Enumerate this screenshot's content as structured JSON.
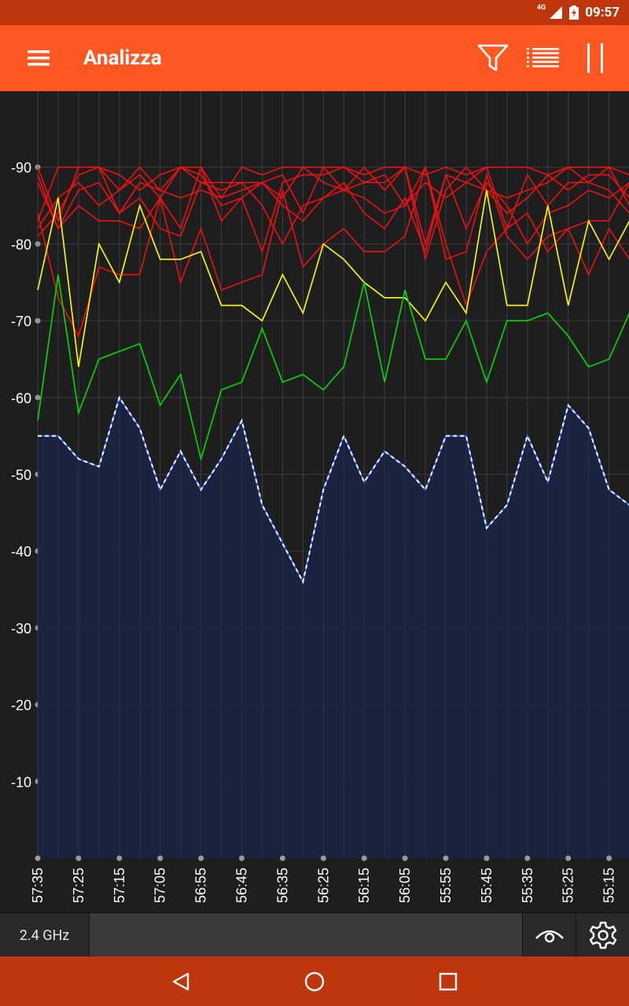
{
  "status_bar": {
    "time": "09:57",
    "network": "4G"
  },
  "app_bar": {
    "title": "Analizza",
    "icons": [
      "menu-icon",
      "filter-icon",
      "list-icon",
      "pause-icon"
    ]
  },
  "colors": {
    "primary": "#ff5722",
    "primary_dark": "#bf360c",
    "chart_background": "#1e1e1e",
    "grid": "#3c3c3c",
    "series": [
      "#ffffff",
      "#00dd00",
      "#ffff00",
      "#ee1111"
    ]
  },
  "bottom_panel": {
    "band": "2.4 GHz",
    "icons": [
      "eye-icon",
      "settings-icon"
    ]
  },
  "nav_bar": {
    "icons": [
      "back-icon",
      "home-icon",
      "recents-icon"
    ]
  },
  "chart_data": {
    "type": "line",
    "ylim": [
      -100,
      0
    ],
    "yticks": [
      -10,
      -20,
      -30,
      -40,
      -50,
      -60,
      -70,
      -80,
      -90
    ],
    "x": [
      "57:35",
      "57:30",
      "57:25",
      "57:20",
      "57:15",
      "57:10",
      "57:05",
      "57:00",
      "56:55",
      "56:50",
      "56:45",
      "56:40",
      "56:35",
      "56:30",
      "56:25",
      "56:20",
      "56:15",
      "56:10",
      "56:05",
      "56:00",
      "55:55",
      "55:50",
      "55:45",
      "55:40",
      "55:35",
      "55:30",
      "55:25",
      "55:20",
      "55:15",
      "55:10"
    ],
    "xtick_labels": [
      "57:35",
      "57:25",
      "57:15",
      "57:05",
      "56:55",
      "56:45",
      "56:35",
      "56:25",
      "56:15",
      "56:05",
      "55:55",
      "55:45",
      "55:35",
      "55:25",
      "55:15"
    ],
    "series": [
      {
        "values": [
          -55,
          -55,
          -52,
          -51,
          -60,
          -56,
          -48,
          -53,
          -48,
          -52,
          -57,
          -46,
          -41,
          -36,
          -48,
          -55,
          -49,
          -53,
          -51,
          -48,
          -55,
          -55,
          -43,
          -46,
          -55,
          -49,
          -59,
          -56,
          -48,
          -46
        ]
      },
      {
        "values": [
          -57,
          -76,
          -58,
          -65,
          -66,
          -67,
          -59,
          -63,
          -52,
          -61,
          -62,
          -69,
          -62,
          -63,
          -61,
          -64,
          -75,
          -62,
          -74,
          -65,
          -65,
          -70,
          -62,
          -70,
          -70,
          -71,
          -68,
          -64,
          -65,
          -71
        ]
      },
      {
        "values": [
          -74,
          -86,
          -64,
          -80,
          -75,
          -85,
          -78,
          -78,
          -79,
          -72,
          -72,
          -70,
          -76,
          -71,
          -80,
          -78,
          -75,
          -73,
          -73,
          -70,
          -75,
          -71,
          -87,
          -72,
          -72,
          -85,
          -72,
          -83,
          -78,
          -83
        ]
      },
      {
        "values": [
          -84,
          -73,
          -68,
          -77,
          -76,
          -76,
          -86,
          -75,
          -82,
          -74,
          -75,
          -76,
          -87,
          -77,
          -80,
          -82,
          -79,
          -79,
          -81,
          -90,
          -78,
          -79,
          -89,
          -81,
          -78,
          -81,
          -82,
          -76,
          -82,
          -78
        ]
      },
      {
        "values": [
          -88,
          -82,
          -85,
          -83,
          -83,
          -82,
          -86,
          -82,
          -90,
          -83,
          -86,
          -88,
          -85,
          -83,
          -86,
          -87,
          -86,
          -84,
          -85,
          -90,
          -80,
          -72,
          -79,
          -82,
          -84,
          -79,
          -82,
          -83,
          -83,
          -88
        ]
      },
      {
        "values": [
          -89,
          -82,
          -87,
          -88,
          -84,
          -86,
          -82,
          -81,
          -88,
          -87,
          -88,
          -85,
          -80,
          -85,
          -86,
          -88,
          -84,
          -82,
          -86,
          -79,
          -89,
          -82,
          -88,
          -85,
          -80,
          -84,
          -85,
          -87,
          -86,
          -88
        ]
      },
      {
        "values": [
          -81,
          -84,
          -89,
          -90,
          -84,
          -88,
          -87,
          -86,
          -87,
          -86,
          -87,
          -88,
          -89,
          -84,
          -90,
          -87,
          -90,
          -87,
          -90,
          -80,
          -89,
          -88,
          -90,
          -82,
          -89,
          -85,
          -88,
          -88,
          -90,
          -85
        ]
      },
      {
        "values": [
          -82,
          -86,
          -88,
          -85,
          -87,
          -89,
          -86,
          -90,
          -89,
          -85,
          -86,
          -79,
          -88,
          -89,
          -89,
          -90,
          -88,
          -88,
          -90,
          -78,
          -87,
          -90,
          -87,
          -84,
          -86,
          -89,
          -87,
          -89,
          -89,
          -86
        ]
      },
      {
        "values": [
          -83,
          -90,
          -90,
          -90,
          -89,
          -87,
          -89,
          -90,
          -90,
          -86,
          -90,
          -89,
          -90,
          -90,
          -90,
          -90,
          -89,
          -90,
          -90,
          -89,
          -90,
          -89,
          -90,
          -90,
          -90,
          -89,
          -90,
          -90,
          -90,
          -89
        ]
      },
      {
        "values": [
          -90,
          -83,
          -90,
          -90,
          -87,
          -90,
          -87,
          -90,
          -88,
          -88,
          -88,
          -88,
          -86,
          -90,
          -88,
          -87,
          -88,
          -89,
          -85,
          -88,
          -86,
          -88,
          -87,
          -86,
          -87,
          -88,
          -90,
          -88,
          -87,
          -84
        ]
      }
    ]
  }
}
